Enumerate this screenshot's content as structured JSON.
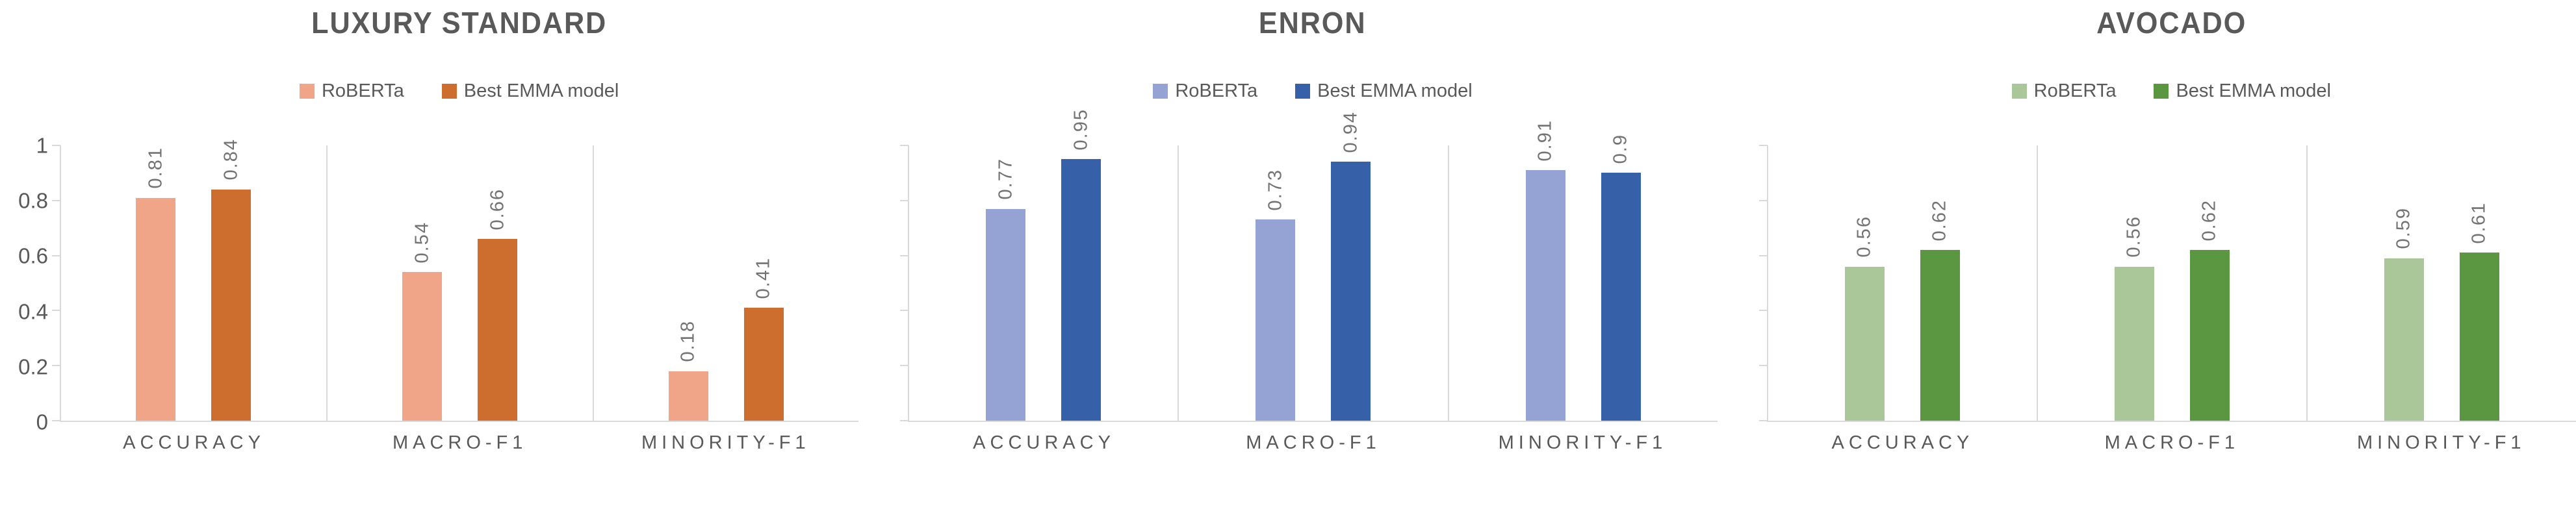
{
  "page": {
    "background": "#FFFFFF"
  },
  "styles": {
    "axis_color": "#D9D9D9",
    "text_color": "#595959",
    "value_label_color": "#737373"
  },
  "chart_data": [
    {
      "type": "bar",
      "title": "LUXURY STANDARD",
      "categories": [
        "ACCURACY",
        "MACRO-F1",
        "MINORITY-F1"
      ],
      "series": [
        {
          "name": "RoBERTa",
          "color": "#F0A488",
          "values": [
            0.81,
            0.54,
            0.18
          ],
          "data_labels": [
            "0.81",
            "0.54",
            "0.18"
          ]
        },
        {
          "name": "Best EMMA model",
          "color": "#CE6E2E",
          "values": [
            0.84,
            0.66,
            0.41
          ],
          "data_labels": [
            "0.84",
            "0.66",
            "0.41"
          ]
        }
      ],
      "y_axis": {
        "min": 0,
        "max": 1,
        "tick_labels": [
          "1",
          "0.8",
          "0.6",
          "0.4",
          "0.2",
          "0"
        ],
        "labels_visible": true
      },
      "legend_position": "top",
      "grid": "vertical-category-separators"
    },
    {
      "type": "bar",
      "title": "ENRON",
      "categories": [
        "ACCURACY",
        "MACRO-F1",
        "MINORITY-F1"
      ],
      "series": [
        {
          "name": "RoBERTa",
          "color": "#94A3D3",
          "values": [
            0.77,
            0.73,
            0.91
          ],
          "data_labels": [
            "0.77",
            "0.73",
            "0.91"
          ]
        },
        {
          "name": "Best EMMA model",
          "color": "#3661A9",
          "values": [
            0.95,
            0.94,
            0.9
          ],
          "data_labels": [
            "0.95",
            "0.94",
            "0.9"
          ]
        }
      ],
      "y_axis": {
        "min": 0,
        "max": 1,
        "tick_labels": [],
        "labels_visible": false
      },
      "legend_position": "top",
      "grid": "vertical-category-separators"
    },
    {
      "type": "bar",
      "title": "AVOCADO",
      "categories": [
        "ACCURACY",
        "MACRO-F1",
        "MINORITY-F1"
      ],
      "series": [
        {
          "name": "RoBERTa",
          "color": "#AAC79A",
          "values": [
            0.56,
            0.56,
            0.59
          ],
          "data_labels": [
            "0.56",
            "0.56",
            "0.59"
          ]
        },
        {
          "name": "Best EMMA model",
          "color": "#5A9740",
          "values": [
            0.62,
            0.62,
            0.61
          ],
          "data_labels": [
            "0.62",
            "0.62",
            "0.61"
          ]
        }
      ],
      "y_axis": {
        "min": 0,
        "max": 1,
        "tick_labels": [],
        "labels_visible": false
      },
      "legend_position": "top",
      "grid": "vertical-category-separators"
    }
  ]
}
